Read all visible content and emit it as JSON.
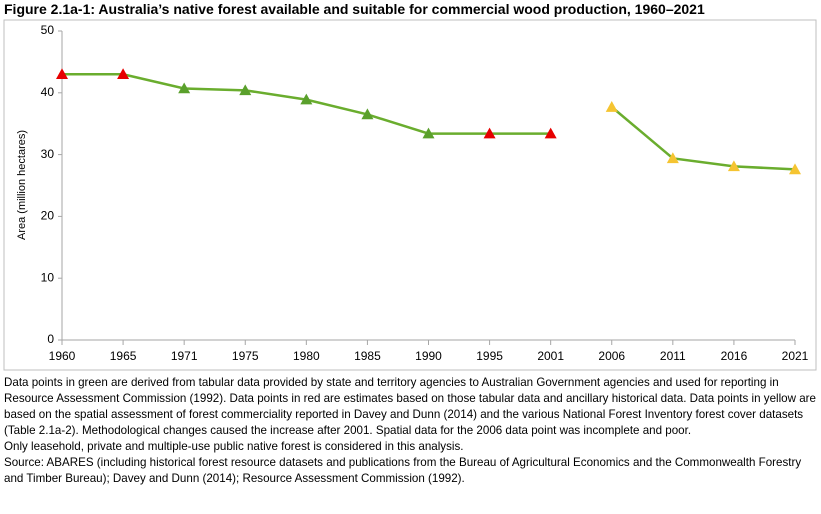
{
  "chart_data": {
    "type": "line",
    "title": "Figure 2.1a-1: Australia’s native forest available and suitable for commercial wood production, 1960–2021",
    "y_label": "Area (million hectares)",
    "categories": [
      "1960",
      "1965",
      "1971",
      "1975",
      "1980",
      "1985",
      "1990",
      "1995",
      "2001",
      "2006",
      "2011",
      "2016",
      "2021"
    ],
    "series": [
      {
        "color": "#6aad2e",
        "values": [
          43,
          43,
          40.7,
          40.4,
          38.9,
          36.5,
          33.4,
          33.4,
          33.4,
          null,
          null,
          null,
          null
        ],
        "marker_colors": [
          "#e60000",
          "#e60000",
          "#5aa02c",
          "#5aa02c",
          "#5aa02c",
          "#5aa02c",
          "#5aa02c",
          "#e60000",
          "#e60000",
          null,
          null,
          null,
          null
        ]
      },
      {
        "color": "#6aad2e",
        "values": [
          null,
          null,
          null,
          null,
          null,
          null,
          null,
          null,
          null,
          37.7,
          29.4,
          28.1,
          27.6
        ],
        "marker_colors": [
          null,
          null,
          null,
          null,
          null,
          null,
          null,
          null,
          null,
          "#f5c431",
          "#f5c431",
          "#f5c431",
          "#f5c431"
        ]
      }
    ],
    "ylim": [
      0,
      50
    ],
    "yticks": [
      0,
      10,
      20,
      30,
      40,
      50
    ],
    "grid": false
  },
  "notes": [
    "Data points in green are derived from tabular data provided by state and territory agencies to Australian Government agencies and used for reporting in Resource Assessment Commission (1992). Data points in red are estimates based on those tabular data and ancillary historical data. Data points in yellow are based on the spatial assessment of forest commerciality reported in Davey and Dunn (2014) and the various National Forest Inventory forest cover datasets (Table 2.1a-2). Methodological changes caused the increase after 2001. Spatial data for the 2006 data point was incomplete and poor.",
    "Only leasehold, private and multiple-use public native forest is considered in this analysis.",
    "Source: ABARES (including historical forest resource datasets and publications from the Bureau of Agricultural Economics and the Commonwealth Forestry and Timber Bureau); Davey and Dunn (2014); Resource Assessment Commission (1992)."
  ]
}
